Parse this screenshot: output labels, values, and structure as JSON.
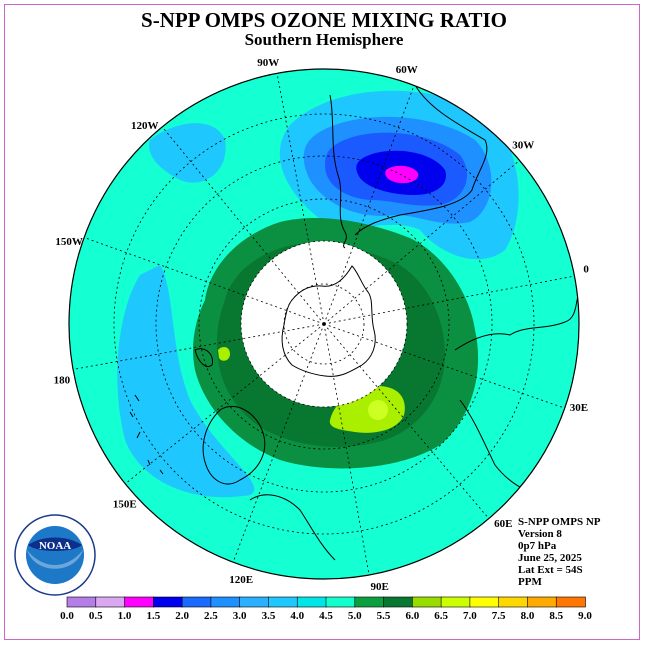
{
  "title": "S-NPP OMPS OZONE MIXING RATIO",
  "subtitle": "Southern Hemisphere",
  "info_lines": [
    "S-NPP OMPS NP",
    "Version 8",
    "0p7 hPa",
    "June 25, 2025",
    "Lat Ext = 54S",
    "PPM"
  ],
  "logo_text": "NOAA",
  "logo_ring_text": "NATIONAL OCEANIC AND ATMOSPHERIC ADMINISTRATION • U.S. DEPARTMENT OF COMMERCE",
  "longitude_labels": [
    {
      "text": "90W",
      "deg": -90
    },
    {
      "text": "60W",
      "deg": -60
    },
    {
      "text": "30W",
      "deg": -30
    },
    {
      "text": "0",
      "deg": 0
    },
    {
      "text": "30E",
      "deg": 30
    },
    {
      "text": "60E",
      "deg": 60
    },
    {
      "text": "90E",
      "deg": 90
    },
    {
      "text": "120E",
      "deg": 120
    },
    {
      "text": "150E",
      "deg": 150
    },
    {
      "text": "180",
      "deg": 180
    },
    {
      "text": "150W",
      "deg": -150
    },
    {
      "text": "120W",
      "deg": -120
    }
  ],
  "colorbar": {
    "ticks": [
      "0.0",
      "0.5",
      "1.0",
      "1.5",
      "2.0",
      "2.5",
      "3.0",
      "3.5",
      "4.0",
      "4.5",
      "5.0",
      "5.5",
      "6.0",
      "6.5",
      "7.0",
      "7.5",
      "8.0",
      "8.5",
      "9.0"
    ],
    "colors": [
      "#b57de8",
      "#d9a8f0",
      "#ff00ff",
      "#0000ee",
      "#1a6aff",
      "#1e90ff",
      "#2ab0ff",
      "#1ec8ff",
      "#00e5e5",
      "#12ffcc",
      "#0aa040",
      "#087830",
      "#99dd00",
      "#ccff00",
      "#ffff00",
      "#ffd700",
      "#ffaa00",
      "#ff7700",
      "#ff2200",
      "#e00000",
      "#8b5a3c"
    ]
  },
  "legend_colors": {
    "ocean_bg": "#14ffd2",
    "band_light_blue": "#1ec8ff",
    "band_mid_blue": "#1e90ff",
    "band_blue": "#1a5aff",
    "band_deep_blue": "#0000ee",
    "max_magenta": "#ff00ff",
    "green_mid": "#0a9040",
    "green_dark": "#087830",
    "yellow_green": "#aaee00",
    "polar_night": "#ffffff"
  }
}
